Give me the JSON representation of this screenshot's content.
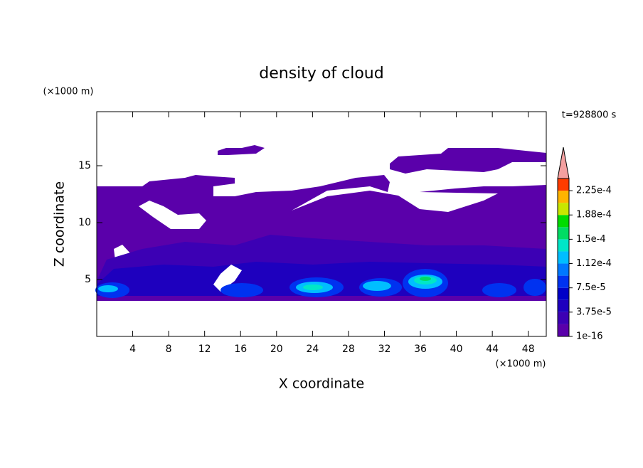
{
  "chart_data": {
    "type": "contour",
    "title": "density of cloud",
    "xlabel": "X coordinate",
    "ylabel": "Z coordinate",
    "xunit": "(×1000 m)",
    "yunit": "(×1000 m)",
    "time_label": "t=928800 s",
    "xlim": [
      0,
      50
    ],
    "ylim": [
      0,
      19.75
    ],
    "xticks": [
      4,
      8,
      12,
      16,
      20,
      24,
      28,
      32,
      36,
      40,
      44,
      48
    ],
    "yticks": [
      5,
      10,
      15
    ],
    "colorbar": {
      "levels": [
        1e-16,
        1.875e-05,
        3.75e-05,
        5.625e-05,
        7.5e-05,
        9.375e-05,
        0.0001125,
        0.00013125,
        0.00015,
        0.00016875,
        0.0001875,
        0.00020625,
        0.000225,
        0.00024375
      ],
      "colors": [
        "#5a00aa",
        "#3c00b4",
        "#1e00be",
        "#0000c8",
        "#0032f0",
        "#0078ff",
        "#00beff",
        "#00e6c8",
        "#00dc64",
        "#00dc00",
        "#c8e600",
        "#ffb400",
        "#ff3c00"
      ],
      "extend_color": "#f4a0a0",
      "ticks": [
        {
          "value": 1e-16,
          "label": "1e-16"
        },
        {
          "value": 3.75e-05,
          "label": "3.75e-5"
        },
        {
          "value": 7.5e-05,
          "label": "7.5e-5"
        },
        {
          "value": 0.0001125,
          "label": "1.12e-4"
        },
        {
          "value": 0.00015,
          "label": "1.5e-4"
        },
        {
          "value": 0.0001875,
          "label": "1.88e-4"
        },
        {
          "value": 0.000225,
          "label": "2.25e-4"
        }
      ]
    }
  }
}
